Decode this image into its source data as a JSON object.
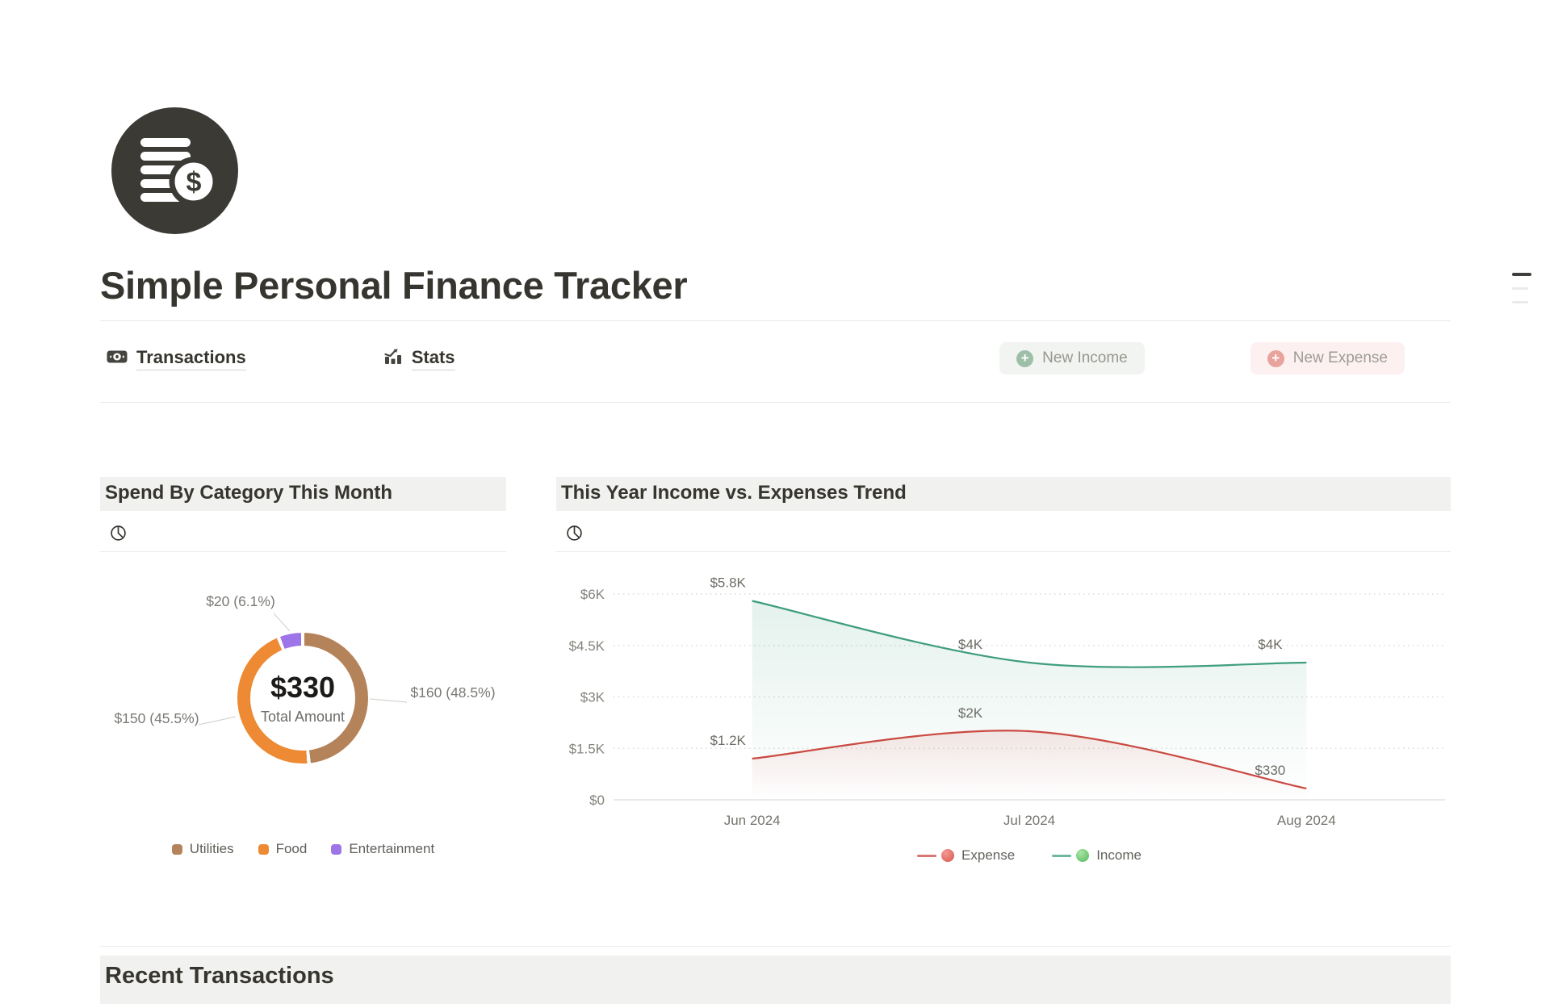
{
  "page": {
    "title": "Simple Personal Finance Tracker",
    "icon": "coin-stack-dollar-icon"
  },
  "nav": {
    "tabs": [
      {
        "label": "Transactions",
        "icon": "banknote-icon"
      },
      {
        "label": "Stats",
        "icon": "bar-chart-icon"
      }
    ],
    "new_income_label": "New Income",
    "new_expense_label": "New Expense"
  },
  "sections": {
    "spend_title": "Spend By Category This Month",
    "trend_title": "This Year Income vs. Expenses Trend",
    "recent_title": "Recent Transactions"
  },
  "colors": {
    "text_dark": "#37352f",
    "header_band_bg": "#f1f1ef",
    "income_accent": "#3f9e7d",
    "expense_accent": "#ca4a42",
    "income_button_plus": "#9dbfa7",
    "expense_button_plus": "#e8a39c"
  },
  "chart_data": [
    {
      "type": "pie",
      "title": "Spend By Category This Month",
      "center_value": "$330",
      "center_label": "Total Amount",
      "total": 330,
      "legend_position": "bottom",
      "segments": [
        {
          "name": "Utilities",
          "value": 160,
          "pct": "48.5%",
          "label": "$160 (48.5%)",
          "color": "#b5835a"
        },
        {
          "name": "Food",
          "value": 150,
          "pct": "45.5%",
          "label": "$150 (45.5%)",
          "color": "#ed8a33"
        },
        {
          "name": "Entertainment",
          "value": 20,
          "pct": "6.1%",
          "label": "$20 (6.1%)",
          "color": "#9d75e8"
        }
      ]
    },
    {
      "type": "line",
      "title": "This Year Income vs. Expenses Trend",
      "categories": [
        "Jun 2024",
        "Jul 2024",
        "Aug 2024"
      ],
      "series": [
        {
          "name": "Expense",
          "color": "#ca4a42",
          "values": [
            1200,
            2000,
            330
          ],
          "labels": [
            "$1.2K",
            "$2K",
            "$330"
          ],
          "fill_opacity": 0.12,
          "legend_dot_light": "#f29b94",
          "legend_dot_dark": "#d9534c"
        },
        {
          "name": "Income",
          "color": "#3f9e7d",
          "values": [
            5800,
            4000,
            4000
          ],
          "labels": [
            "$5.8K",
            "$4K",
            "$4K"
          ],
          "fill_opacity": 0.14,
          "legend_dot_light": "#a8e4a6",
          "legend_dot_dark": "#54b857"
        }
      ],
      "ylim": [
        0,
        6000
      ],
      "yticks": [
        {
          "v": 0,
          "label": "$0"
        },
        {
          "v": 1500,
          "label": "$1.5K"
        },
        {
          "v": 3000,
          "label": "$3K"
        },
        {
          "v": 4500,
          "label": "$4.5K"
        },
        {
          "v": 6000,
          "label": "$6K"
        }
      ],
      "grid": "dotted horizontal",
      "legend_position": "bottom"
    }
  ]
}
